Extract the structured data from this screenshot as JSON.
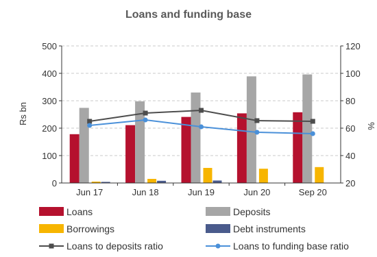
{
  "chart_data": {
    "type": "bar",
    "title": "Loans and funding base",
    "categories": [
      "Jun 17",
      "Jun 18",
      "Jun 19",
      "Jun 20",
      "Sep 20"
    ],
    "ylabel_left": "Rs bn",
    "ylabel_right": "%",
    "ylim_left": [
      0,
      500
    ],
    "ylim_right": [
      20,
      120
    ],
    "yticks_left": [
      "0",
      "100",
      "200",
      "300",
      "400",
      "500"
    ],
    "yticks_right": [
      "20",
      "40",
      "60",
      "80",
      "100",
      "120"
    ],
    "grid": "horizontal dashed",
    "legend_position": "bottom",
    "bar_series": [
      {
        "name": "Loans",
        "color": "#b5112e",
        "values": [
          178,
          211,
          241,
          254,
          258
        ]
      },
      {
        "name": "Deposits",
        "color": "#a6a6a6",
        "values": [
          274,
          298,
          330,
          389,
          396
        ]
      },
      {
        "name": "Borrowings",
        "color": "#f7b500",
        "values": [
          5,
          15,
          55,
          52,
          58
        ]
      },
      {
        "name": "Debt instruments",
        "color": "#4a5b8c",
        "values": [
          4,
          8,
          9,
          0,
          0
        ]
      }
    ],
    "line_series": [
      {
        "name": "Loans to deposits ratio",
        "color": "#4d4d4d",
        "marker": "square",
        "axis": "right",
        "values": [
          65,
          71,
          73,
          65.5,
          65
        ]
      },
      {
        "name": "Loans to funding base ratio",
        "color": "#4a90d9",
        "marker": "circle",
        "axis": "right",
        "values": [
          62,
          66,
          61,
          57,
          56
        ]
      }
    ]
  }
}
